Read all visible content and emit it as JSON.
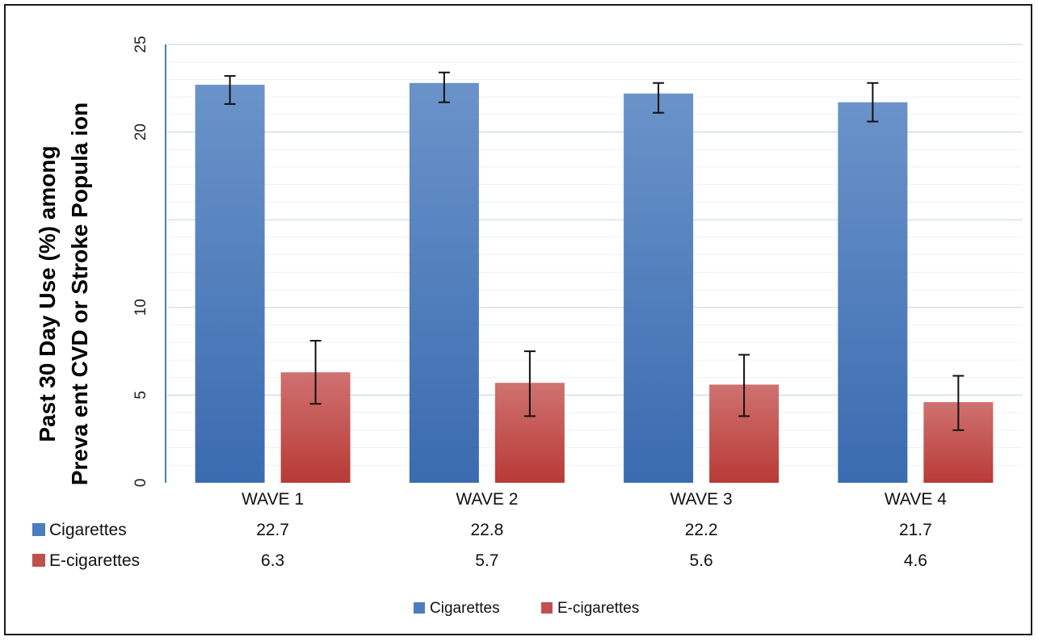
{
  "chart_data": {
    "type": "bar",
    "ylabel": [
      "Past 30 Day Use (%) among",
      "Preva ent CVD or Stroke Popula ion"
    ],
    "yticks": [
      0,
      5,
      10,
      20,
      25
    ],
    "ylim": [
      0,
      25
    ],
    "grid": true,
    "legend_position": "bottom",
    "categories": [
      "WAVE 1",
      "WAVE 2",
      "WAVE 3",
      "WAVE 4"
    ],
    "series": [
      {
        "name": "Cigarettes",
        "color": "#4a7ebf",
        "values": [
          22.7,
          22.8,
          22.2,
          21.7
        ],
        "error_low": [
          21.6,
          21.7,
          21.1,
          20.6
        ],
        "error_high": [
          23.2,
          23.4,
          22.8,
          22.8
        ]
      },
      {
        "name": "E-cigarettes",
        "color": "#c0504d",
        "values": [
          6.3,
          5.7,
          5.6,
          4.6
        ],
        "error_low": [
          4.5,
          3.8,
          3.8,
          3.0
        ],
        "error_high": [
          8.1,
          7.5,
          7.3,
          6.1
        ]
      }
    ],
    "table_rows": [
      {
        "label": "Cigarettes",
        "values": [
          "22.7",
          "22.8",
          "22.2",
          "21.7"
        ]
      },
      {
        "label": "E-cigarettes",
        "values": [
          "6.3",
          "5.7",
          "5.6",
          "4.6"
        ]
      }
    ],
    "legend": [
      "Cigarettes",
      "E-cigarettes"
    ]
  }
}
